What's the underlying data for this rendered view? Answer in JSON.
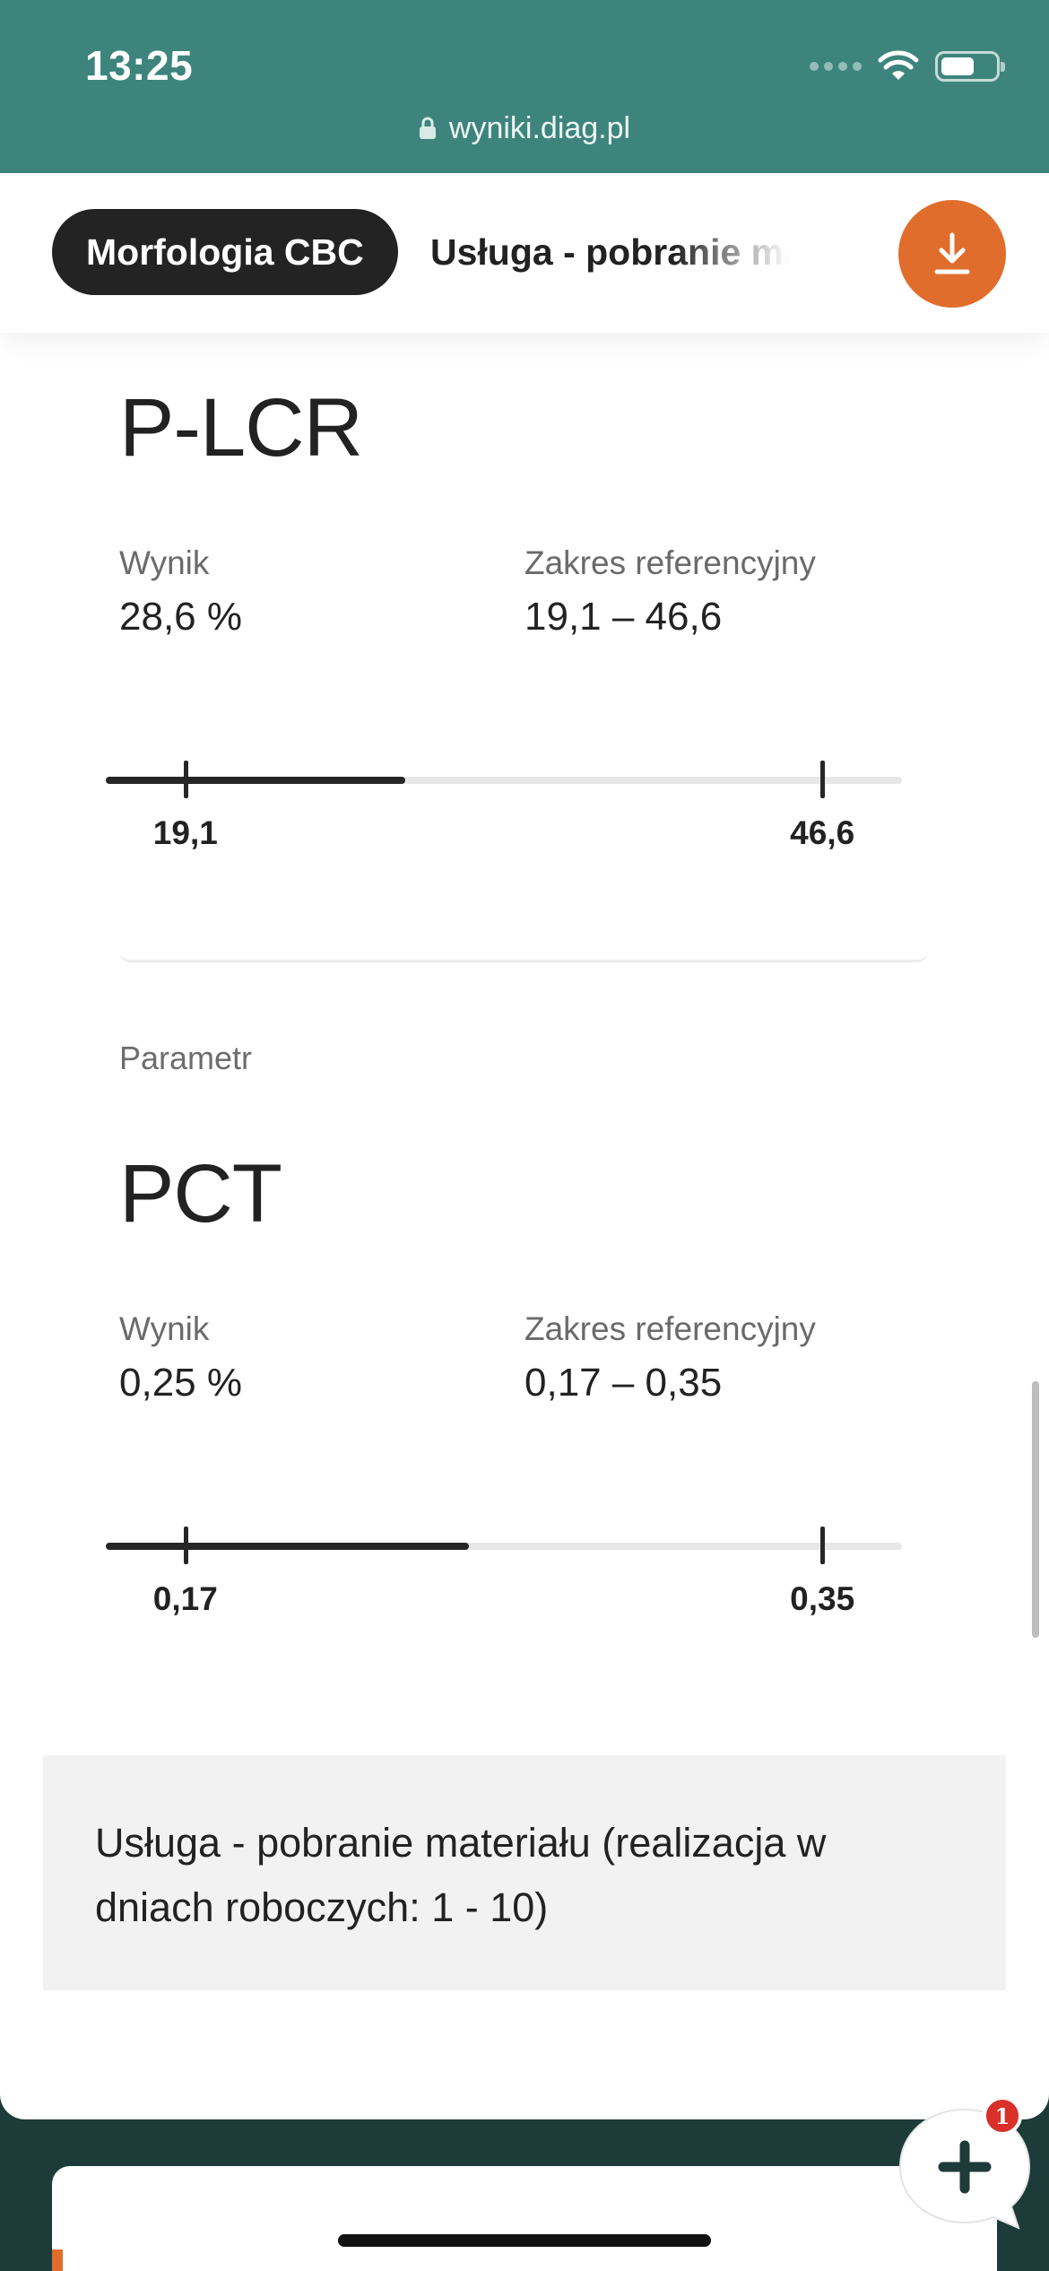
{
  "status_bar": {
    "time": "13:25"
  },
  "browser": {
    "url": "wyniki.diag.pl"
  },
  "tabs": [
    {
      "label": "Morfologia CBC"
    },
    {
      "label": "Usługa - pobranie materiału"
    }
  ],
  "icons": {
    "download": "download-icon",
    "lock": "lock-icon",
    "wifi": "wifi-icon",
    "battery": "battery-icon",
    "fab": "plus-icon"
  },
  "colors": {
    "header_bg": "#3d857c",
    "accent_orange": "#e06d2c",
    "active_tab": "#232323",
    "badge_red": "#d9302a"
  },
  "results": [
    {
      "param_label": "",
      "name": "P-LCR",
      "result_label": "Wynik",
      "result_value": "28,6 %",
      "range_label": "Zakres referencyjny",
      "range_value": "19,1 – 46,6",
      "range_min_label": "19,1",
      "range_max_label": "46,6",
      "result_numeric": 28.6,
      "range_min": 19.1,
      "range_max": 46.6
    },
    {
      "param_label": "Parametr",
      "name": "PCT",
      "result_label": "Wynik",
      "result_value": "0,25 %",
      "range_label": "Zakres referencyjny",
      "range_value": "0,17 – 0,35",
      "range_min_label": "0,17",
      "range_max_label": "0,35",
      "result_numeric": 0.25,
      "range_min": 0.17,
      "range_max": 0.35
    }
  ],
  "service": {
    "text": "Usługa - pobranie materiału (realizacja w dniach roboczych: 1 - 10)"
  },
  "fab": {
    "badge_count": "1"
  }
}
